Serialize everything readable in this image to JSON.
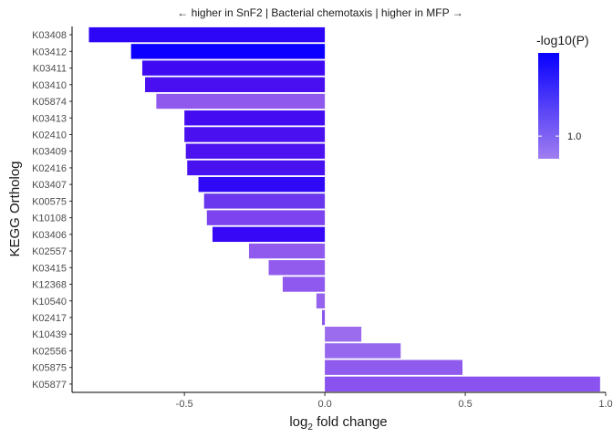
{
  "chart_data": {
    "type": "bar",
    "orientation": "horizontal",
    "title": "← higher in SnF2 | Bacterial chemotaxis | higher in MFP →",
    "xlabel_main": "log",
    "xlabel_sub": "2",
    "xlabel_rest": " fold change",
    "ylabel": "KEGG Ortholog",
    "xlim": [
      -0.9,
      1.0
    ],
    "x_ticks": [
      {
        "value": -0.5,
        "label": "-0.5"
      },
      {
        "value": 0.0,
        "label": "0.0"
      },
      {
        "value": 0.5,
        "label": "0.5"
      },
      {
        "value": 1.0,
        "label": "1.0"
      }
    ],
    "categories": [
      "K03408",
      "K03412",
      "K03411",
      "K03410",
      "K05874",
      "K03413",
      "K02410",
      "K03409",
      "K02416",
      "K03407",
      "K00575",
      "K10108",
      "K03406",
      "K02557",
      "K03415",
      "K12368",
      "K10540",
      "K02417",
      "K10439",
      "K02556",
      "K05875",
      "K05877"
    ],
    "values": [
      -0.84,
      -0.69,
      -0.65,
      -0.64,
      -0.6,
      -0.5,
      -0.5,
      -0.495,
      -0.49,
      -0.45,
      -0.43,
      -0.42,
      -0.4,
      -0.27,
      -0.2,
      -0.15,
      -0.03,
      -0.01,
      0.13,
      0.27,
      0.49,
      0.98
    ],
    "neg_log10_p": [
      1.8,
      2.1,
      1.7,
      1.7,
      0.95,
      1.75,
      1.7,
      1.7,
      1.75,
      1.8,
      1.4,
      1.2,
      2.0,
      0.95,
      0.95,
      0.95,
      0.95,
      0.95,
      0.75,
      0.75,
      0.95,
      0.95
    ],
    "colors": [
      "#2d05f7",
      "#0b00ff",
      "#3f0af3",
      "#4a0ff0",
      "#8f59ee",
      "#430cf1",
      "#4a10f0",
      "#4c12ef",
      "#4711f0",
      "#2f08f6",
      "#6a37ef",
      "#7c43ee",
      "#3708f5",
      "#915aee",
      "#925bee",
      "#8f58ee",
      "#9563ee",
      "#8a55ee",
      "#9c6cee",
      "#9668ee",
      "#8f5aee",
      "#8a52ee"
    ],
    "grid": false,
    "legend": {
      "title": "-log10(P)",
      "placement": "top-right",
      "type": "colorbar",
      "tick_label": "1.0",
      "tick_value": 1.0,
      "range": [
        0.7,
        2.1
      ],
      "color_low": "#a07ef0",
      "color_high": "#0800ff"
    }
  }
}
